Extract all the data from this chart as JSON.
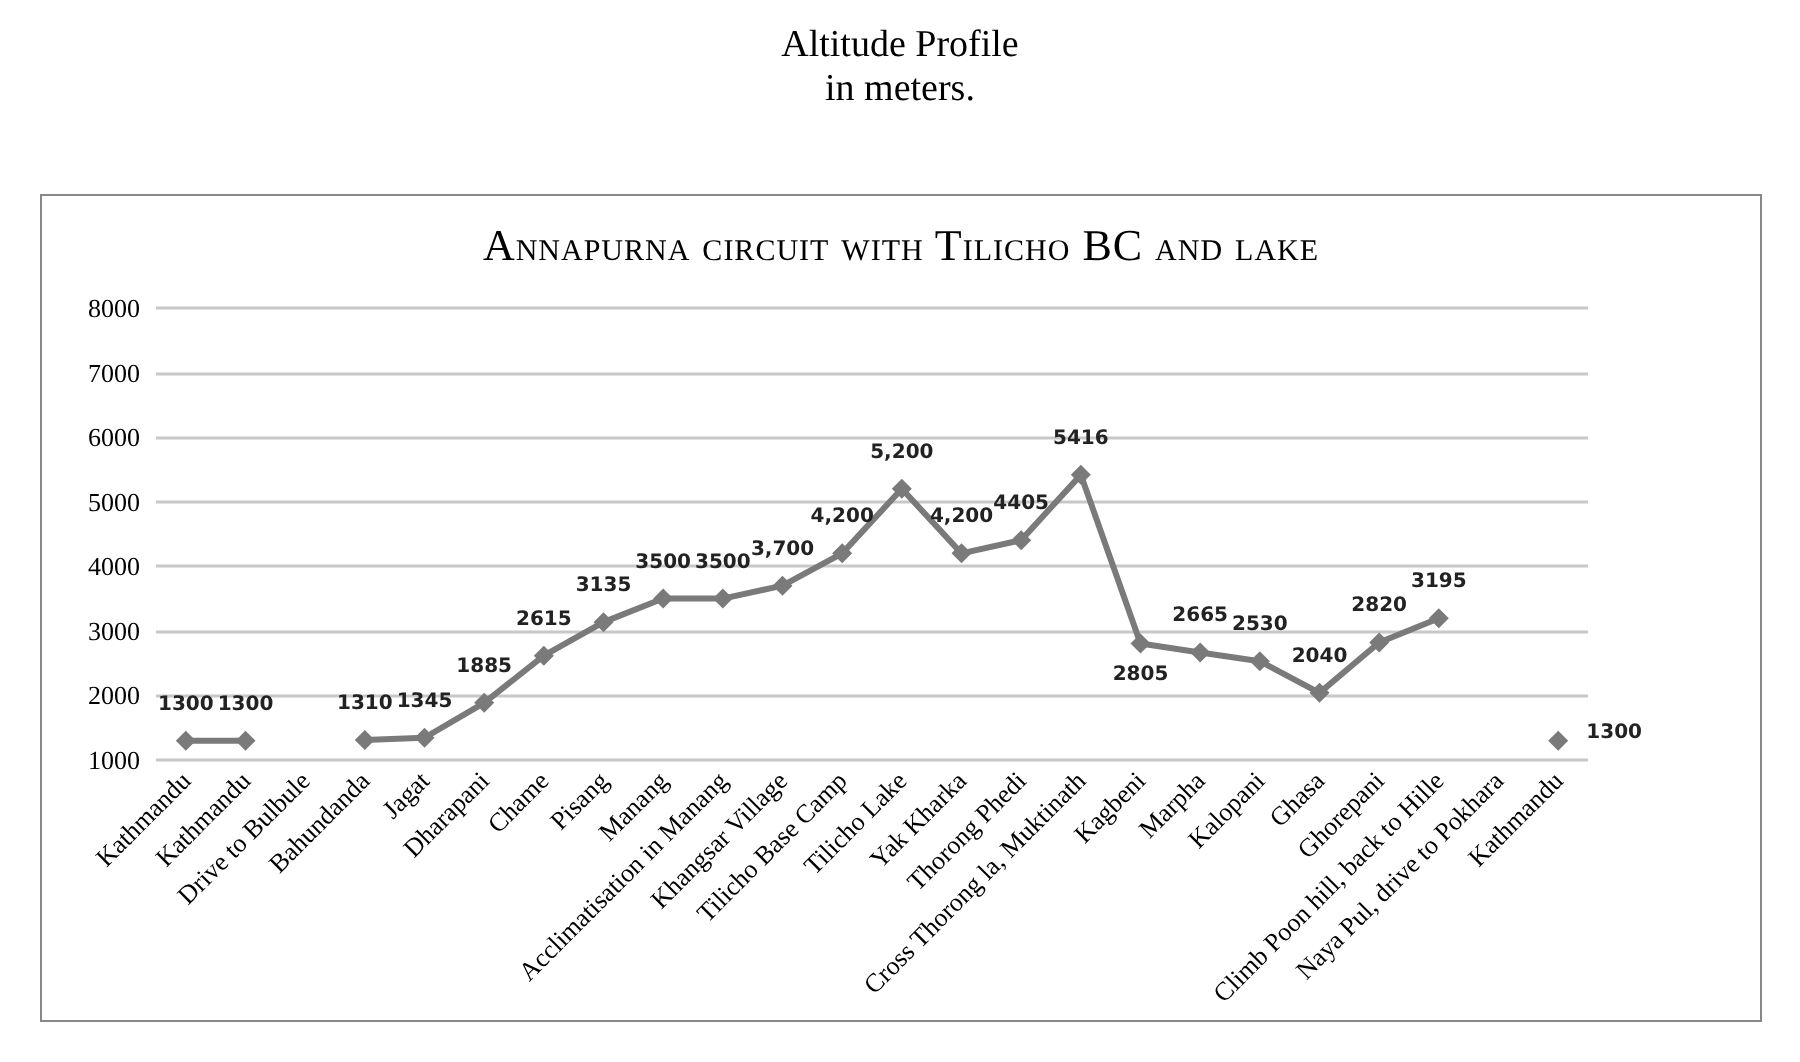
{
  "chart_data": {
    "type": "line",
    "title": "Altitude Profile\nin meters.",
    "subtitle": "Annapurna circuit with Tilicho BC and lake",
    "categories": [
      "Kathmandu",
      "Kathmandu",
      "Drive to Bulbule",
      "Bahundanda",
      "Jagat",
      "Dharapani",
      "Chame",
      "Pisang",
      "Manang",
      "Acclimatisation in Manang",
      "Khangsar Village",
      "Tilicho Base Camp",
      "Tilicho Lake",
      "Yak Kharka",
      "Thorong Phedi",
      "Cross Thorong la, Muktinath",
      "Kagbeni",
      "Marpha",
      "Kalopani",
      "Ghasa",
      "Ghorepani",
      "Climb Poon hill, back to Hille",
      "Naya Pul, drive to Pokhara",
      "Kathmandu"
    ],
    "series": [
      {
        "color": "#7a7a7a",
        "values": [
          1300,
          1300,
          null,
          1310,
          1345,
          1885,
          2615,
          3135,
          3500,
          3500,
          3700,
          4200,
          5200,
          4200,
          4405,
          5416,
          2805,
          2665,
          2530,
          2040,
          2820,
          3195,
          null,
          1300
        ],
        "value_labels": [
          "1300",
          "1300",
          null,
          "1310",
          "1345",
          "1885",
          "2615",
          "3135",
          "3500",
          "3500",
          "3,700",
          "4,200",
          "5,200",
          "4,200",
          "4405",
          "5416",
          "2805",
          "2665",
          "2530",
          "2040",
          "2820",
          "3195",
          null,
          "1300"
        ]
      }
    ],
    "ylim": [
      1000,
      8000
    ],
    "yticks": [
      1000,
      2000,
      3000,
      4000,
      5000,
      6000,
      7000,
      8000
    ],
    "grid": "y",
    "marker": "diamond",
    "line_style": "solid"
  }
}
